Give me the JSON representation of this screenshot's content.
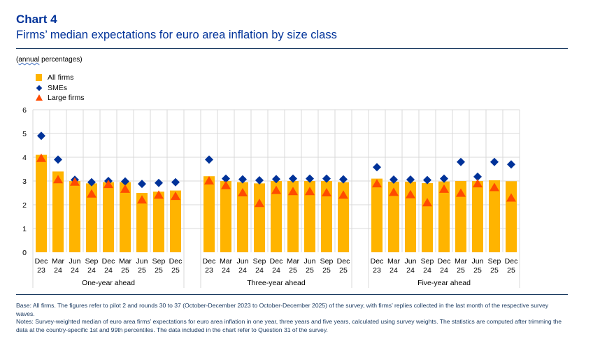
{
  "header": {
    "label": "Chart 4",
    "title": "Firms’ median expectations for euro area inflation by size class"
  },
  "units": {
    "prefix": "(",
    "squiggle_word": "annual",
    "rest": " percentages)"
  },
  "legend": [
    {
      "label": "All firms",
      "symbol": "square",
      "color": "#ffb400"
    },
    {
      "label": "SMEs",
      "symbol": "diamond",
      "color": "#003299"
    },
    {
      "label": "Large firms",
      "symbol": "triangle",
      "color": "#ff4b00"
    }
  ],
  "chart_data": {
    "type": "bar",
    "title": "Firms’ median expectations for euro area inflation by size class",
    "ylabel": "annual percentages",
    "ylim": [
      0,
      6
    ],
    "yticks": [
      "0",
      "1",
      "2",
      "3",
      "4",
      "5",
      "6"
    ],
    "grid": true,
    "legend_position": "top-left",
    "categories": [
      [
        "Dec",
        "23"
      ],
      [
        "Mar",
        "24"
      ],
      [
        "Jun",
        "24"
      ],
      [
        "Sep",
        "24"
      ],
      [
        "Dec",
        "24"
      ],
      [
        "Mar",
        "25"
      ],
      [
        "Jun",
        "25"
      ],
      [
        "Sep",
        "25"
      ],
      [
        "Dec",
        "25"
      ]
    ],
    "groups": [
      {
        "name": "One-year ahead",
        "series": [
          {
            "name": "All firms",
            "type": "bar",
            "values": [
              4.1,
              3.4,
              3.0,
              2.9,
              2.95,
              2.95,
              2.5,
              2.55,
              2.6
            ]
          },
          {
            "name": "SMEs",
            "type": "diamond",
            "values": [
              4.9,
              3.9,
              3.05,
              2.95,
              3.0,
              2.98,
              2.88,
              2.92,
              2.95
            ]
          },
          {
            "name": "Large firms",
            "type": "triangle",
            "values": [
              3.95,
              3.05,
              2.95,
              2.45,
              2.85,
              2.65,
              2.2,
              2.4,
              2.35
            ]
          }
        ]
      },
      {
        "name": "Three-year ahead",
        "series": [
          {
            "name": "All firms",
            "type": "bar",
            "values": [
              3.2,
              3.0,
              2.95,
              2.9,
              3.0,
              3.0,
              3.0,
              3.0,
              2.95
            ]
          },
          {
            "name": "SMEs",
            "type": "diamond",
            "values": [
              3.9,
              3.1,
              3.07,
              3.03,
              3.08,
              3.1,
              3.1,
              3.1,
              3.07
            ]
          },
          {
            "name": "Large firms",
            "type": "triangle",
            "values": [
              3.0,
              2.8,
              2.5,
              2.05,
              2.6,
              2.55,
              2.55,
              2.5,
              2.4
            ]
          }
        ]
      },
      {
        "name": "Five-year ahead",
        "series": [
          {
            "name": "All firms",
            "type": "bar",
            "values": [
              3.1,
              2.97,
              2.97,
              2.91,
              2.98,
              3.0,
              3.0,
              3.03,
              2.99
            ]
          },
          {
            "name": "SMEs",
            "type": "diamond",
            "values": [
              3.58,
              3.06,
              3.06,
              3.04,
              3.1,
              3.8,
              3.18,
              3.8,
              3.7
            ]
          },
          {
            "name": "Large firms",
            "type": "triangle",
            "values": [
              2.88,
              2.52,
              2.42,
              2.08,
              2.65,
              2.48,
              2.88,
              2.72,
              2.28
            ]
          }
        ]
      }
    ]
  },
  "footnotes": {
    "base": "Base: All firms. The figures refer to pilot 2 and rounds 30 to 37 (October-December 2023 to October-December 2025) of the survey, with firms’ replies collected in the last month of the respective survey waves.",
    "notes": "Notes: Survey-weighted median of euro area firms’ expectations for euro area inflation in one year, three years and five years, calculated using survey weights. The statistics are computed after trimming the data at the country-specific 1st and 99th percentiles. The data included in the chart refer to Question 31 of the survey."
  }
}
